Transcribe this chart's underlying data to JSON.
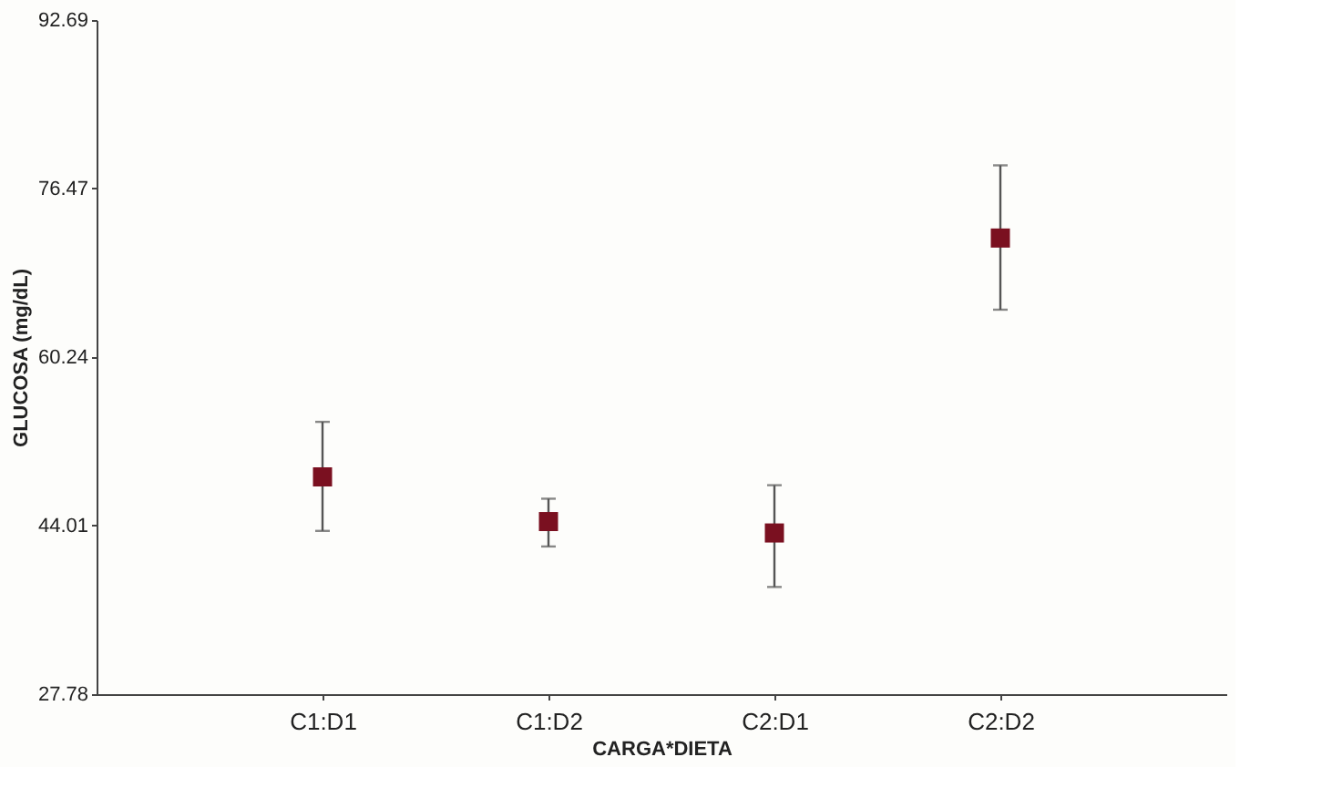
{
  "chart_data": {
    "type": "scatter",
    "xlabel": "CARGA*DIETA",
    "ylabel": "GLUCOSA (mg/dL)",
    "categories": [
      "C1:D1",
      "C1:D2",
      "C2:D1",
      "C2:D2"
    ],
    "series": [
      {
        "color": "#7a1020",
        "values": [
          48.7,
          44.4,
          43.3,
          71.7
        ],
        "errors": [
          [
            43.5,
            54.0
          ],
          [
            42.0,
            46.6
          ],
          [
            38.1,
            47.9
          ],
          [
            64.8,
            78.7
          ]
        ]
      }
    ],
    "ylim": [
      27.78,
      92.69
    ],
    "yticks": [
      27.78,
      44.01,
      60.24,
      76.47,
      92.69
    ],
    "marker": "square",
    "grid": false
  }
}
